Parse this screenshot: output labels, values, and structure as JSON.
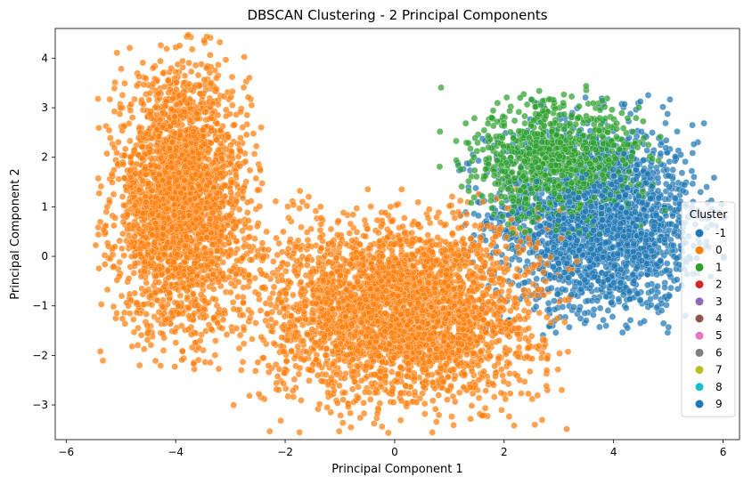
{
  "chart_data": {
    "type": "scatter",
    "title": "DBSCAN Clustering - 2 Principal Components",
    "xlabel": "Principal Component 1",
    "ylabel": "Principal Component 2",
    "xlim": [
      -6.2,
      6.3
    ],
    "ylim": [
      -3.7,
      4.6
    ],
    "xticks": [
      -6,
      -4,
      -2,
      0,
      2,
      4,
      6
    ],
    "yticks": [
      -3,
      -2,
      -1,
      0,
      1,
      2,
      3,
      4
    ],
    "grid": false,
    "legend": {
      "title": "Cluster",
      "placement": "right",
      "entries": [
        {
          "label": "-1",
          "color": "#1f77b4"
        },
        {
          "label": "0",
          "color": "#ff7f0e"
        },
        {
          "label": "1",
          "color": "#2ca02c"
        },
        {
          "label": "2",
          "color": "#d62728"
        },
        {
          "label": "3",
          "color": "#9467bd"
        },
        {
          "label": "4",
          "color": "#8c564b"
        },
        {
          "label": "5",
          "color": "#e377c2"
        },
        {
          "label": "6",
          "color": "#7f7f7f"
        },
        {
          "label": "7",
          "color": "#bcbd22"
        },
        {
          "label": "8",
          "color": "#17becf"
        },
        {
          "label": "9",
          "color": "#1f77b4"
        }
      ]
    },
    "series": [
      {
        "name": "-1",
        "color": "#1f77b4",
        "clusters": [
          {
            "cx": 3.6,
            "cy": 0.8,
            "sx": 0.95,
            "sy": 0.95,
            "n": 1800
          }
        ]
      },
      {
        "name": "0",
        "color": "#ff7f0e",
        "clusters": [
          {
            "cx": -3.9,
            "cy": 1.1,
            "sx": 0.6,
            "sy": 1.3,
            "n": 2600
          },
          {
            "cx": 0.1,
            "cy": -1.1,
            "sx": 1.25,
            "sy": 0.95,
            "n": 3000
          }
        ]
      },
      {
        "name": "1",
        "color": "#2ca02c",
        "clusters": [
          {
            "cx": 2.9,
            "cy": 1.95,
            "sx": 0.8,
            "sy": 0.6,
            "n": 800
          }
        ]
      },
      {
        "name": "9",
        "color": "#1f77b4",
        "clusters": [
          {
            "cx": 4.2,
            "cy": 0.3,
            "sx": 0.7,
            "sy": 0.7,
            "n": 400
          }
        ]
      }
    ]
  }
}
